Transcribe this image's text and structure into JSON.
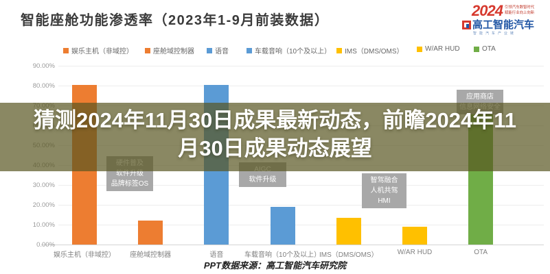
{
  "header": {
    "title": "智能座舱功能渗透率（2023年1-9月前装数据）"
  },
  "logo": {
    "year": "2024",
    "slogan_line1": "引领汽车数智时代",
    "slogan_line2": "赋能行业向上向新",
    "brand": "高工智能汽车",
    "tagline": "智能汽车产业链",
    "brand_blue": "#2257A5",
    "brand_red": "#D6392E"
  },
  "watermark": {
    "full_text": "猜测2024年11月30日成果最新动态，前瞻2024年11月30日成果动态展望",
    "lines": [
      "猜测2024年11月30日成果最新动态，前瞻2024年11",
      "月30日成果动态展望"
    ]
  },
  "chart_data": {
    "type": "bar",
    "title": "智能座舱功能渗透率（2023年1-9月前装数据）",
    "categories": [
      "娱乐主机（非域控）",
      "座舱域控制器",
      "语音",
      "车载音响（10个及以上）",
      "IMS（DMS/OMS）",
      "W/AR HUD",
      "OTA"
    ],
    "values": [
      80.3,
      12.2,
      80.3,
      19.0,
      13.6,
      9.1,
      66.2
    ],
    "colors": [
      "#ED7D31",
      "#ED7D31",
      "#5B9BD5",
      "#5B9BD5",
      "#FFC000",
      "#FFC000",
      "#70AD47"
    ],
    "ylim": [
      0,
      90
    ],
    "yticks": [
      "90.00%",
      "80.00%",
      "70.00%",
      "60.00%",
      "50.00%",
      "40.00%",
      "30.00%",
      "20.00%",
      "10.00%",
      "0.00%"
    ],
    "grid": true,
    "legend_position": "top",
    "annotations": [
      {
        "target": "座舱域控制器",
        "lines": [
          "硬件普及",
          "软件升级",
          "品牌标签OS"
        ]
      },
      {
        "target": "车载音响（10个及以上）",
        "lines": [
          "AIGC",
          "软件升级"
        ]
      },
      {
        "target": "W/AR HUD",
        "lines": [
          "智驾融合",
          "人机共驾",
          "HMI"
        ]
      },
      {
        "target": "OTA",
        "lines": [
          "应用商店",
          "信息网络安全"
        ]
      }
    ]
  },
  "footer": {
    "source": "PPT数据来源：高工智能汽车研究院"
  }
}
